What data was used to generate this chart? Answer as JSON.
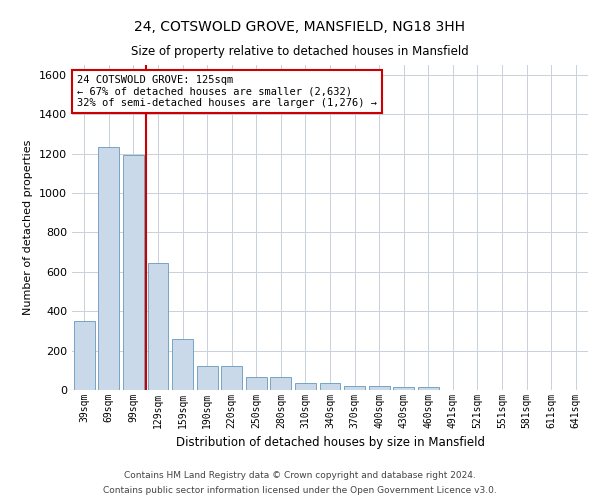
{
  "title": "24, COTSWOLD GROVE, MANSFIELD, NG18 3HH",
  "subtitle": "Size of property relative to detached houses in Mansfield",
  "xlabel": "Distribution of detached houses by size in Mansfield",
  "ylabel": "Number of detached properties",
  "bar_color": "#c9d9ea",
  "bar_edge_color": "#6699bb",
  "grid_color": "#c8d0dc",
  "background_color": "#ffffff",
  "vline_color": "#cc0000",
  "vline_x": 2.5,
  "annotation_text": "24 COTSWOLD GROVE: 125sqm\n← 67% of detached houses are smaller (2,632)\n32% of semi-detached houses are larger (1,276) →",
  "annotation_box_color": "#cc0000",
  "footer_line1": "Contains HM Land Registry data © Crown copyright and database right 2024.",
  "footer_line2": "Contains public sector information licensed under the Open Government Licence v3.0.",
  "categories": [
    "39sqm",
    "69sqm",
    "99sqm",
    "129sqm",
    "159sqm",
    "190sqm",
    "220sqm",
    "250sqm",
    "280sqm",
    "310sqm",
    "340sqm",
    "370sqm",
    "400sqm",
    "430sqm",
    "460sqm",
    "491sqm",
    "521sqm",
    "551sqm",
    "581sqm",
    "611sqm",
    "641sqm"
  ],
  "values": [
    350,
    1235,
    1195,
    645,
    260,
    120,
    120,
    65,
    65,
    35,
    35,
    22,
    22,
    15,
    15,
    0,
    0,
    0,
    0,
    0,
    0
  ],
  "ylim": [
    0,
    1650
  ],
  "yticks": [
    0,
    200,
    400,
    600,
    800,
    1000,
    1200,
    1400,
    1600
  ]
}
